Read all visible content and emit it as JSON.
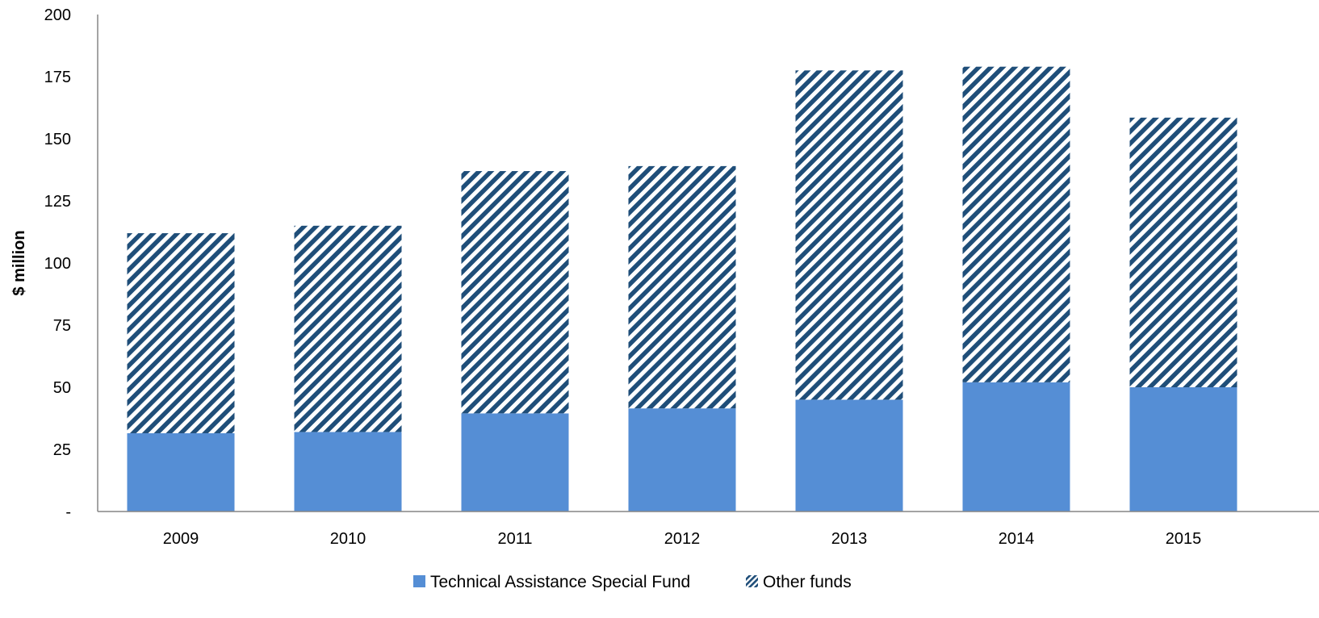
{
  "chart_data": {
    "type": "bar",
    "stacked": true,
    "categories": [
      "2009",
      "2010",
      "2011",
      "2012",
      "2013",
      "2014",
      "2015"
    ],
    "series": [
      {
        "name": "Technical Assistance Special Fund",
        "values": [
          31.5,
          32,
          39.5,
          41.5,
          45,
          52,
          50
        ],
        "color": "#558ed5",
        "pattern": "solid"
      },
      {
        "name": "Other funds",
        "values": [
          80.5,
          83,
          97.5,
          97.5,
          132.5,
          127,
          108.5
        ],
        "color": "#1f4e79",
        "pattern": "diagonal-hatch"
      }
    ],
    "ylabel": "$ million",
    "xlabel": "",
    "title": "",
    "ylim": [
      0,
      200
    ],
    "yticks": [
      0,
      25,
      50,
      75,
      100,
      125,
      150,
      175,
      200
    ],
    "ytick_labels": [
      "-",
      "25",
      "50",
      "75",
      "100",
      "125",
      "150",
      "175",
      "200"
    ],
    "grid": false,
    "legend_position": "bottom"
  }
}
